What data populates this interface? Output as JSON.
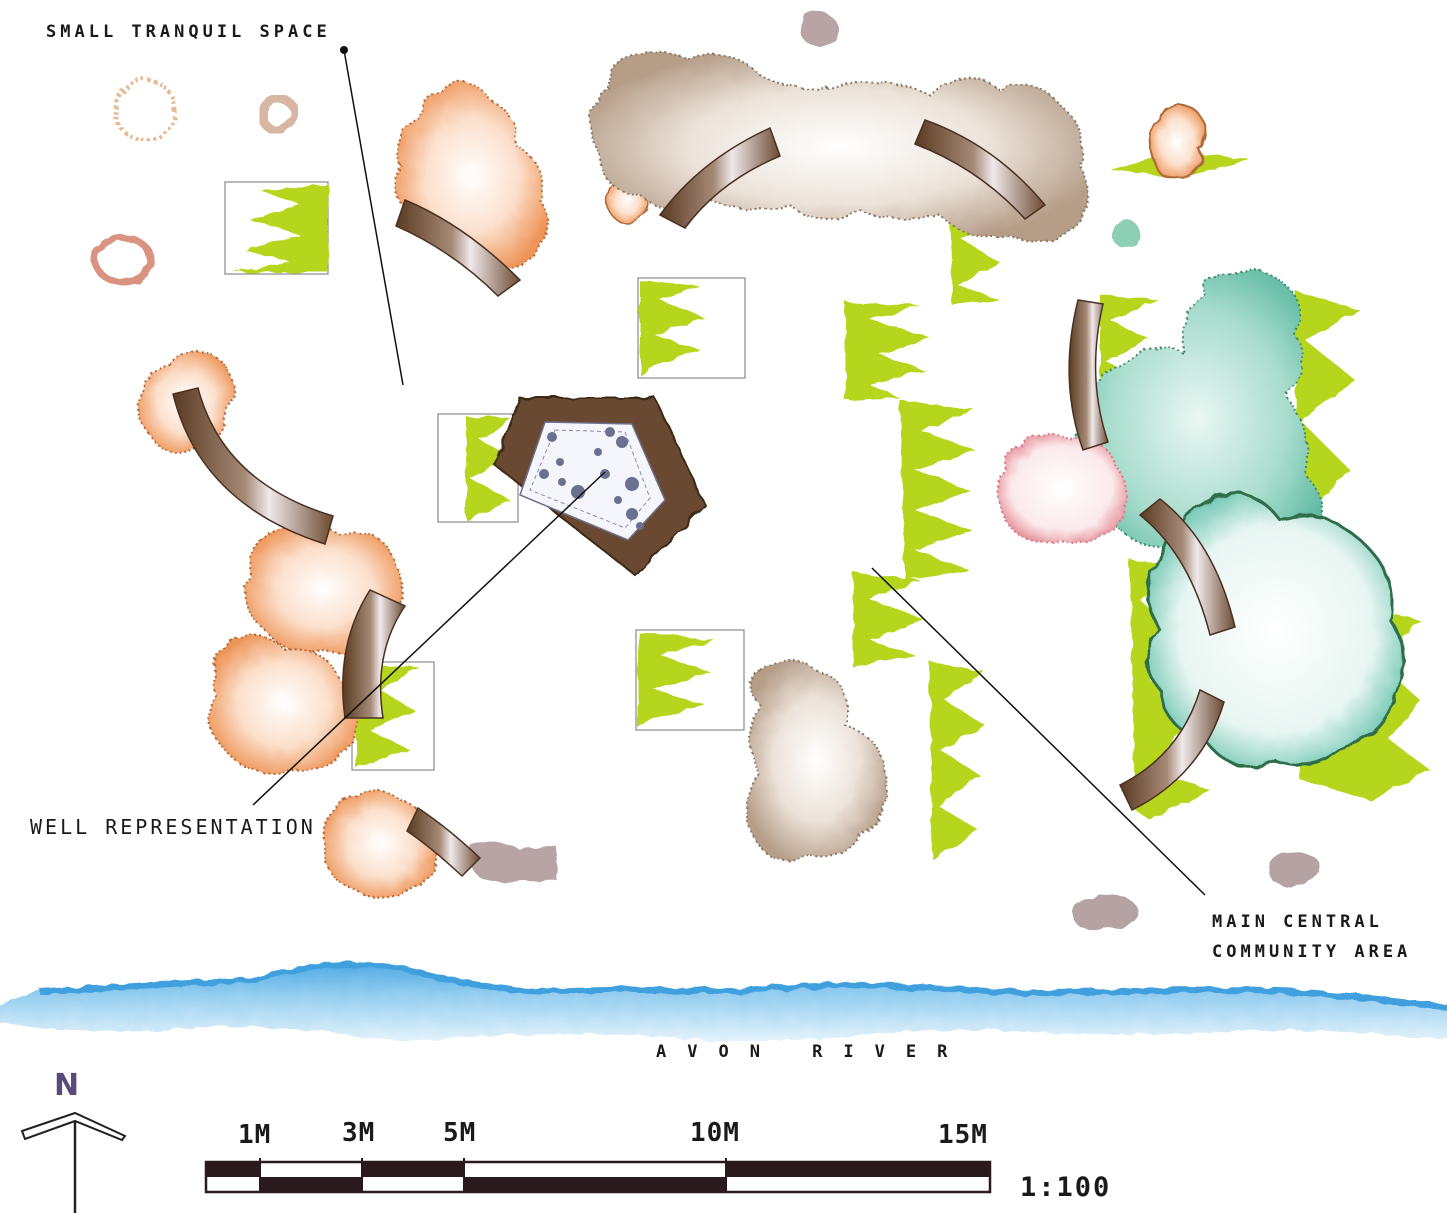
{
  "labels": {
    "small_tranquil_space": "SMALL TRANQUIL SPACE",
    "well_representation": "WELL REPRESENTATION",
    "main_central_line1": "MAIN CENTRAL",
    "main_central_line2": "COMMUNITY AREA",
    "river": "AVON RIVER"
  },
  "north_arrow": {
    "letter": "N",
    "color": "#5a4a7a"
  },
  "scale_bar": {
    "ticks": [
      "1M",
      "3M",
      "5M",
      "10M",
      "15M"
    ],
    "ratio": "1:100"
  },
  "palette": {
    "grass": "#b5d61e",
    "river": "#5bb3e6",
    "bench": "#6b4a30",
    "tree_orange": "#ef9a5c",
    "tree_taupe": "#b09a88",
    "tree_teal": "#6cc4b0",
    "tree_pink": "#e89aa0",
    "tree_green_dark": "#3f8a5a"
  }
}
